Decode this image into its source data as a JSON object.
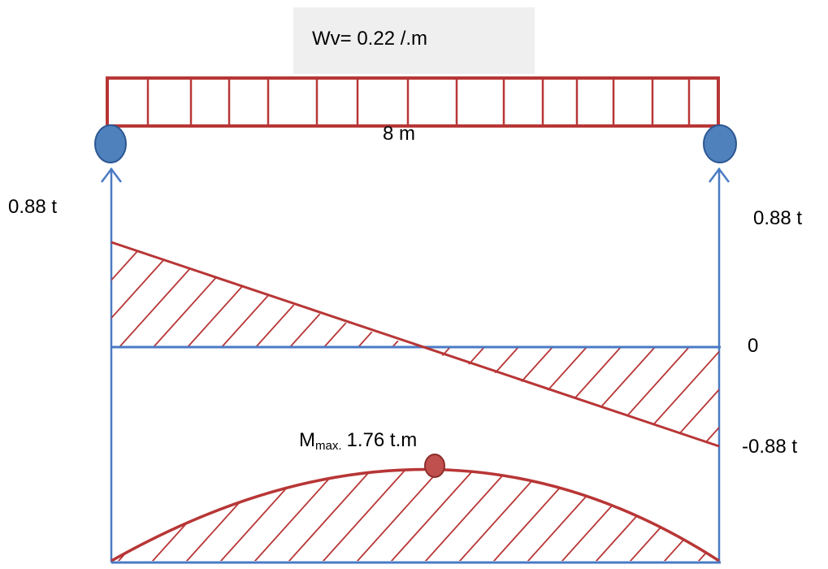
{
  "load": {
    "label": "Wv= 0.22 /.m",
    "box_color": "#efefef"
  },
  "beam": {
    "span_label": "8 m"
  },
  "reactions": {
    "left": "0.88 t",
    "right": "0.88 t"
  },
  "shear": {
    "zero_label": "0",
    "end_label": "-0.88 t"
  },
  "moment": {
    "max_symbol": "M",
    "max_subscript": "max.",
    "max_value": "1.76 t.m"
  },
  "colors": {
    "load_red": "#b83636",
    "axis_blue": "#4a7bc4",
    "support_fill": "#4f81bd",
    "support_stroke": "#2c5791",
    "point_fill": "#c0504d"
  }
}
